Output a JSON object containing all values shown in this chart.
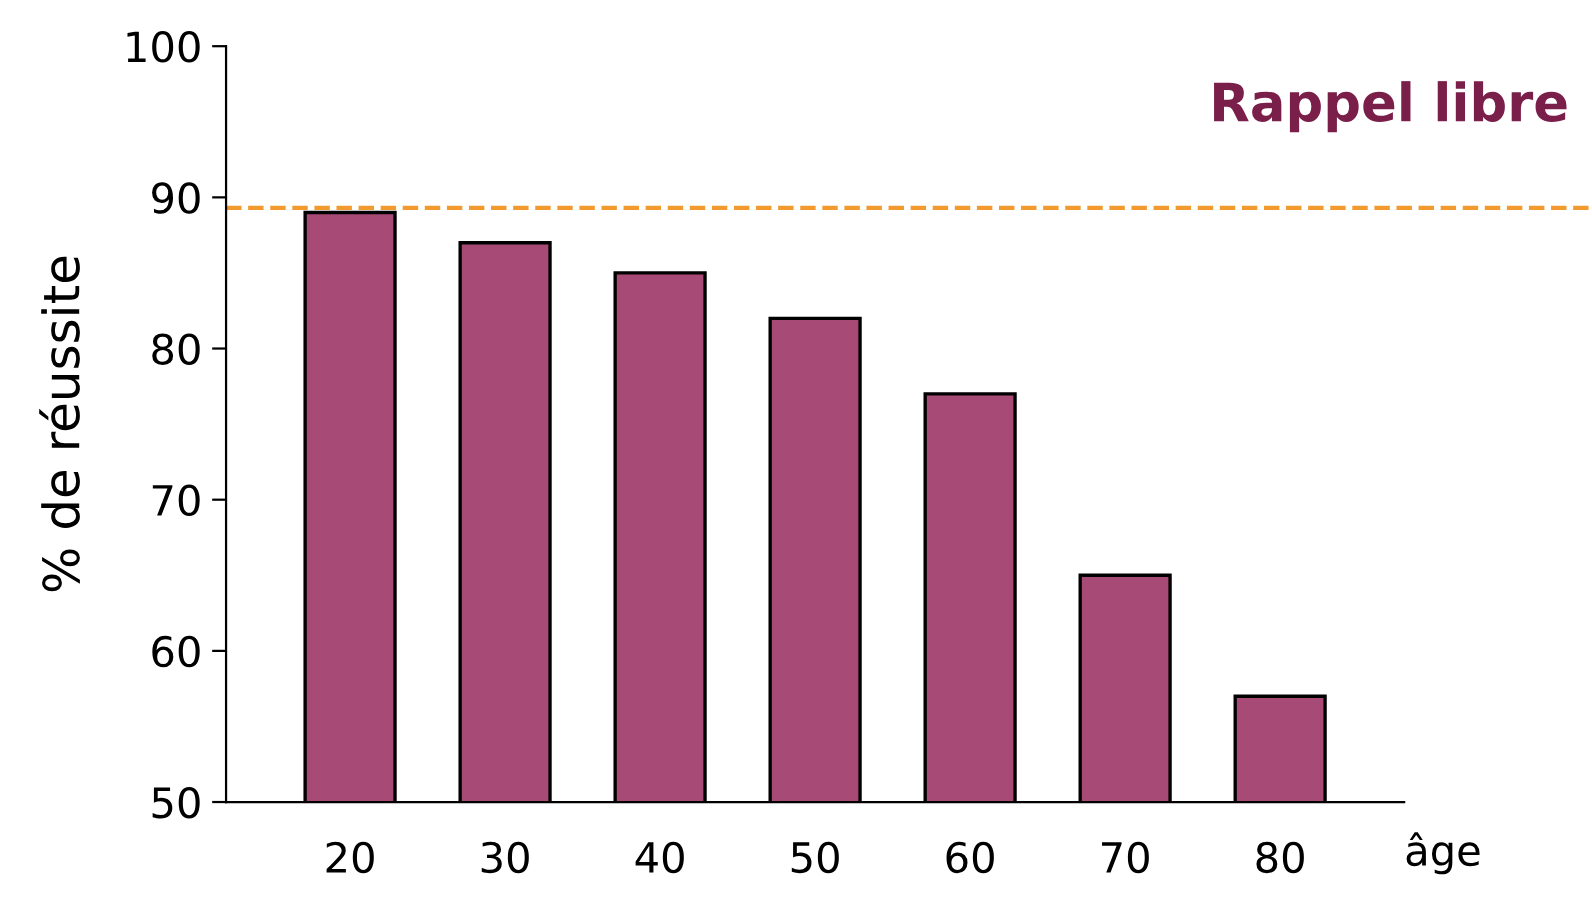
{
  "chart_data": {
    "type": "bar",
    "title": "Rappel libre",
    "xlabel": "âge",
    "ylabel": "% de réussite",
    "categories": [
      "20",
      "30",
      "40",
      "50",
      "60",
      "70",
      "80"
    ],
    "values": [
      89,
      87,
      85,
      82,
      77,
      65,
      57
    ],
    "color": "#a84a76",
    "ylim": [
      50,
      100
    ],
    "yticks": [
      50,
      60,
      70,
      80,
      90,
      100
    ],
    "grid": false,
    "ref_lines": [
      {
        "axis": "y",
        "value": 89.3,
        "label": null,
        "color": "#f29a2e",
        "line_style": "dashed"
      }
    ]
  }
}
